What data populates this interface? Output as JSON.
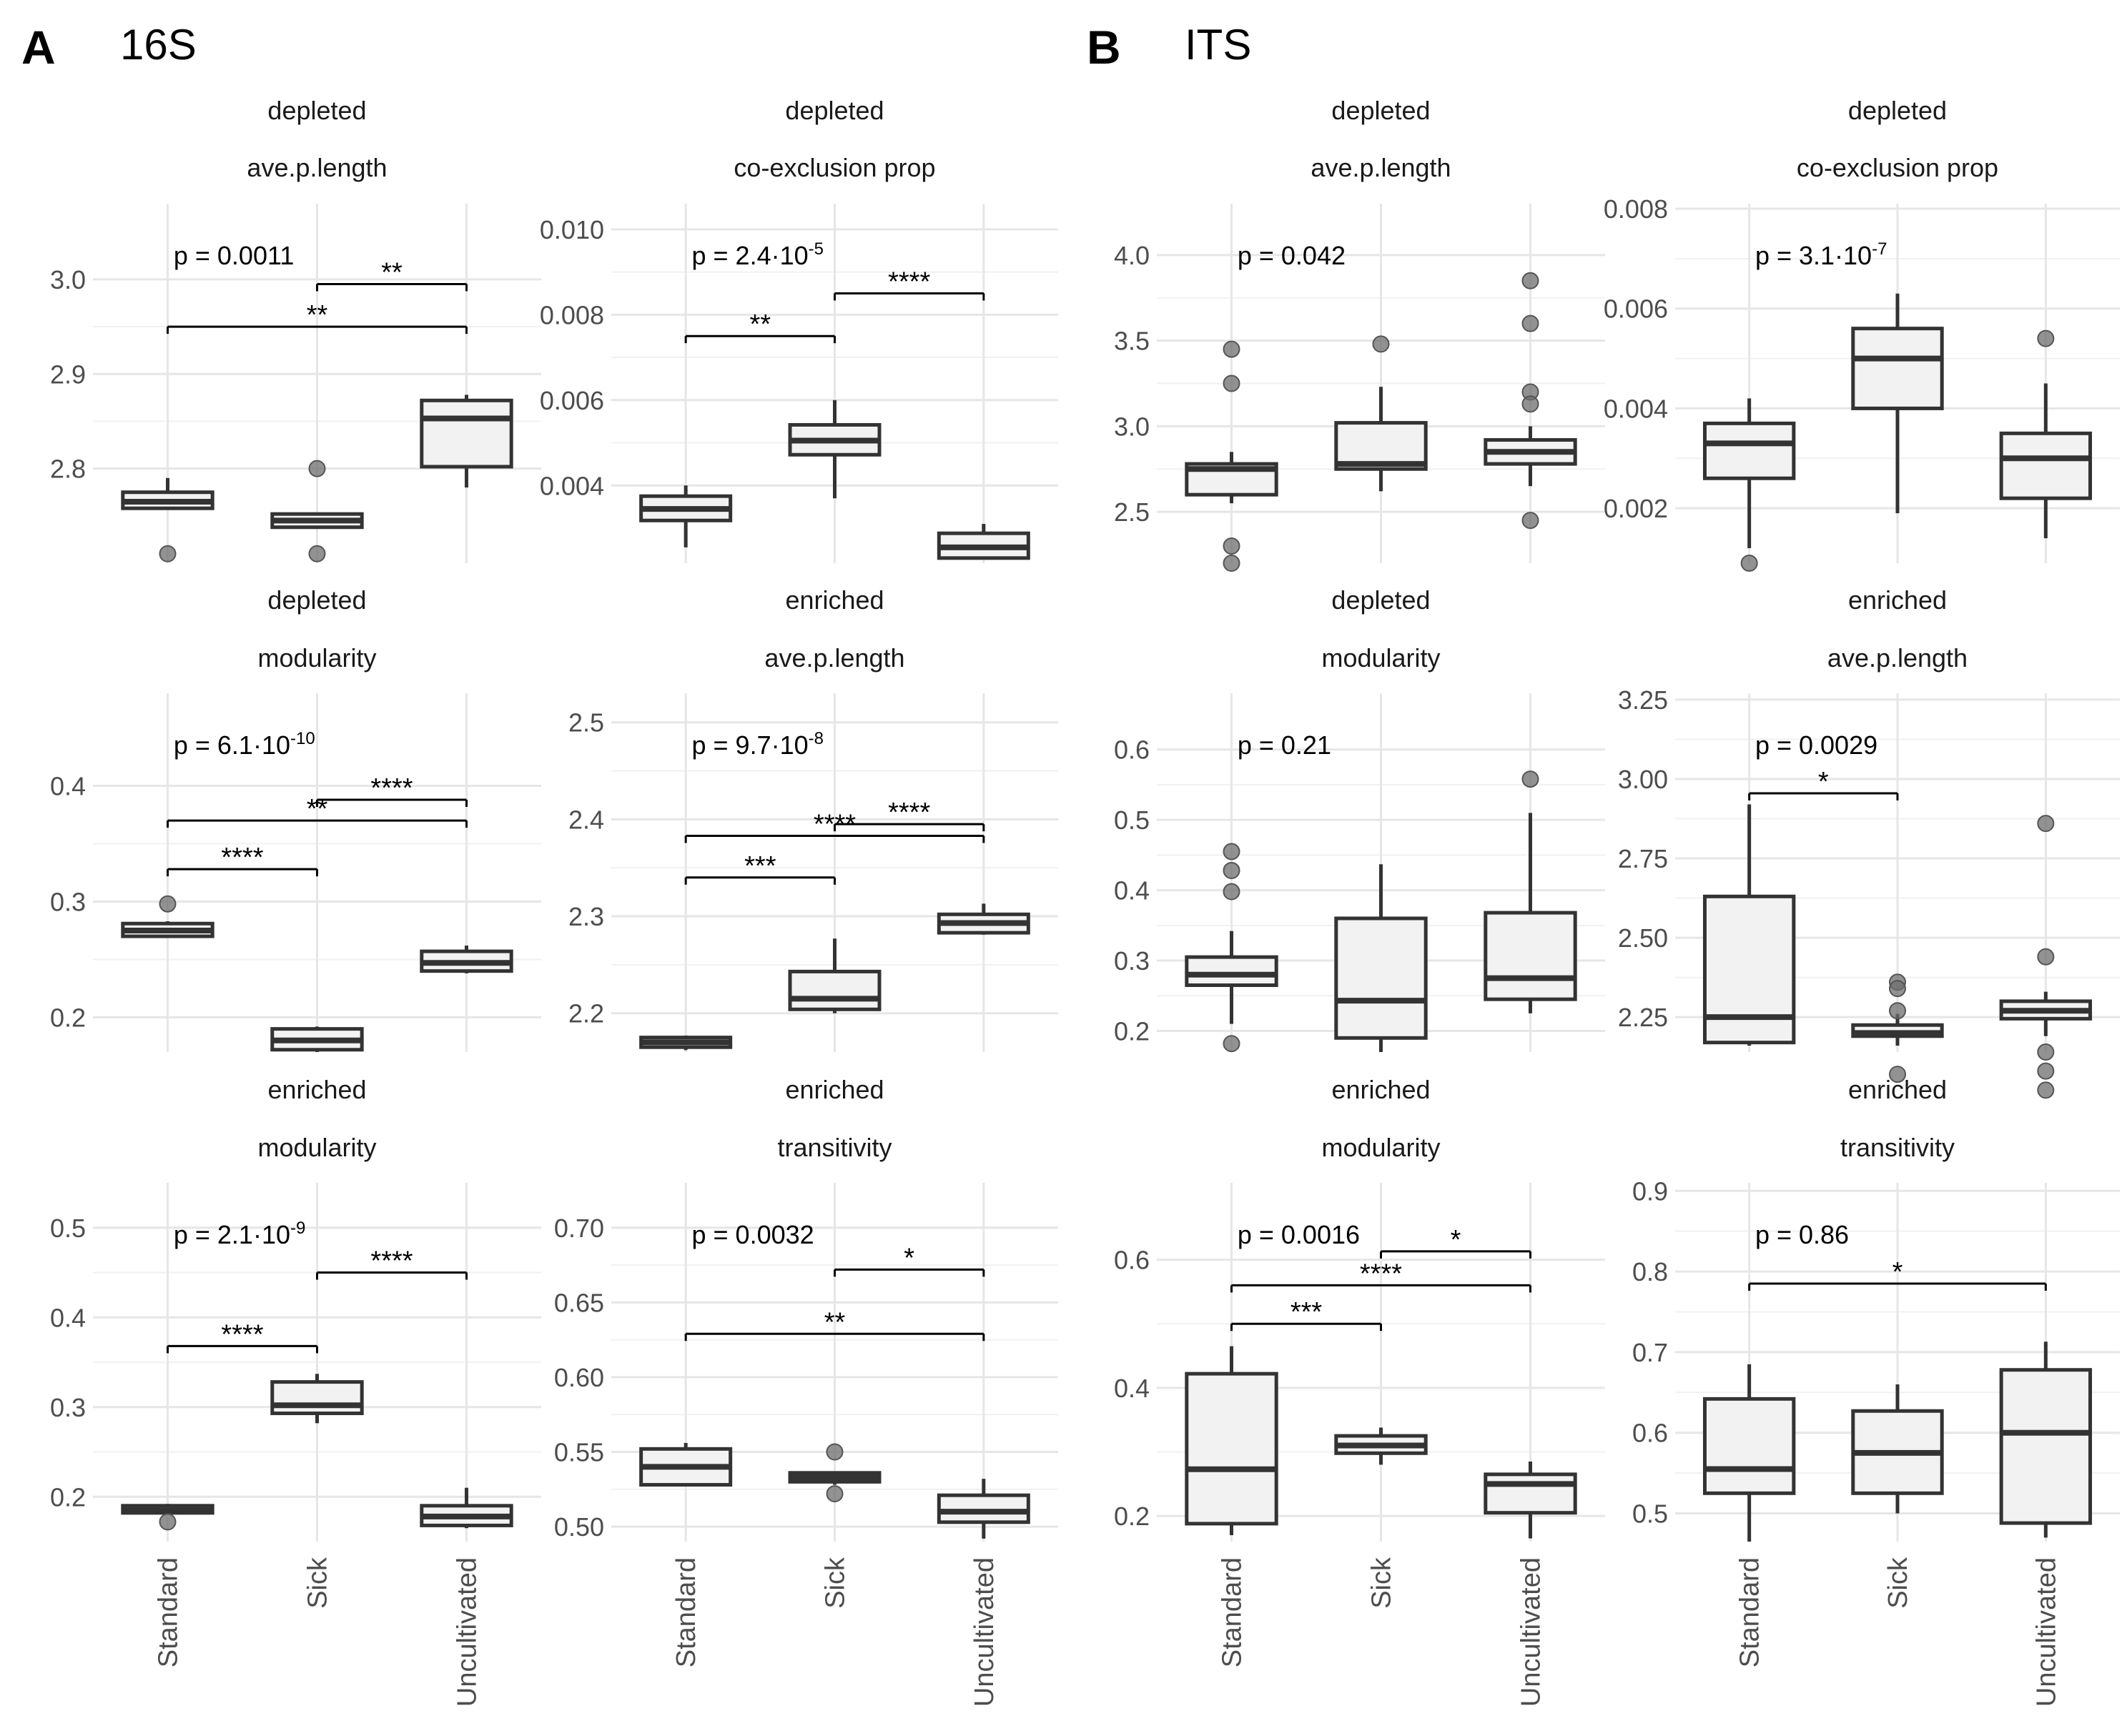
{
  "figure": {
    "panels": [
      {
        "label": "A",
        "title": "16S"
      },
      {
        "label": "B",
        "title": "ITS"
      }
    ],
    "groups": [
      "Standard",
      "Sick",
      "Uncultivated"
    ]
  },
  "chart_data": [
    {
      "type": "boxplot",
      "panel": "A",
      "strip1": "depleted",
      "strip2": "ave.p.length",
      "ylim": [
        2.7,
        3.08
      ],
      "yticks": [
        2.8,
        2.9,
        3.0
      ],
      "yticklabels": [
        "2.8",
        "2.9",
        "3.0"
      ],
      "pvalue": {
        "mantissa": "p = 0.0011",
        "exponent": ""
      },
      "categories": [
        "Standard",
        "Sick",
        "Uncultivated"
      ],
      "boxes": [
        {
          "q1": 2.758,
          "median": 2.765,
          "q3": 2.775,
          "whisker_low": 2.758,
          "whisker_high": 2.79,
          "outliers": [
            2.71
          ]
        },
        {
          "q1": 2.738,
          "median": 2.745,
          "q3": 2.752,
          "whisker_low": 2.738,
          "whisker_high": 2.752,
          "outliers": [
            2.8,
            2.71
          ]
        },
        {
          "q1": 2.802,
          "median": 2.853,
          "q3": 2.872,
          "whisker_low": 2.78,
          "whisker_high": 2.878,
          "outliers": []
        }
      ],
      "brackets": [
        {
          "from": 1,
          "to": 2,
          "y": 2.995,
          "label": "**"
        },
        {
          "from": 0,
          "to": 2,
          "y": 2.95,
          "label": "**"
        }
      ]
    },
    {
      "type": "boxplot",
      "panel": "A",
      "strip1": "depleted",
      "strip2": "co-exclusion prop",
      "ylim": [
        0.00218,
        0.0106
      ],
      "yticks": [
        0.004,
        0.006,
        0.008,
        0.01
      ],
      "yticklabels": [
        "0.004",
        "0.006",
        "0.008",
        "0.010"
      ],
      "pvalue": {
        "mantissa": "p = 2.4·10",
        "exponent": "-5"
      },
      "categories": [
        "Standard",
        "Sick",
        "Uncultivated"
      ],
      "boxes": [
        {
          "q1": 0.00318,
          "median": 0.00345,
          "q3": 0.00375,
          "whisker_low": 0.00255,
          "whisker_high": 0.004,
          "outliers": []
        },
        {
          "q1": 0.00472,
          "median": 0.00505,
          "q3": 0.00542,
          "whisker_low": 0.0037,
          "whisker_high": 0.006,
          "outliers": []
        },
        {
          "q1": 0.0023,
          "median": 0.00255,
          "q3": 0.00288,
          "whisker_low": 0.0023,
          "whisker_high": 0.0031,
          "outliers": []
        }
      ],
      "brackets": [
        {
          "from": 1,
          "to": 2,
          "y": 0.0085,
          "label": "****"
        },
        {
          "from": 0,
          "to": 1,
          "y": 0.0075,
          "label": "**"
        }
      ]
    },
    {
      "type": "boxplot",
      "panel": "B",
      "strip1": "depleted",
      "strip2": "ave.p.length",
      "ylim": [
        2.2,
        4.3
      ],
      "yticks": [
        2.5,
        3.0,
        3.5,
        4.0
      ],
      "yticklabels": [
        "2.5",
        "3.0",
        "3.5",
        "4.0"
      ],
      "pvalue": {
        "mantissa": "p = 0.042",
        "exponent": ""
      },
      "categories": [
        "Standard",
        "Sick",
        "Uncultivated"
      ],
      "boxes": [
        {
          "q1": 2.6,
          "median": 2.75,
          "q3": 2.78,
          "whisker_low": 2.55,
          "whisker_high": 2.85,
          "outliers": [
            3.45,
            3.25,
            2.3,
            2.2
          ]
        },
        {
          "q1": 2.75,
          "median": 2.78,
          "q3": 3.02,
          "whisker_low": 2.62,
          "whisker_high": 3.23,
          "outliers": [
            3.48
          ]
        },
        {
          "q1": 2.78,
          "median": 2.85,
          "q3": 2.92,
          "whisker_low": 2.65,
          "whisker_high": 3.0,
          "outliers": [
            3.85,
            3.6,
            3.2,
            3.13,
            2.45
          ]
        }
      ],
      "brackets": []
    },
    {
      "type": "boxplot",
      "panel": "B",
      "strip1": "depleted",
      "strip2": "co-exclusion prop",
      "ylim": [
        0.0009,
        0.0081
      ],
      "yticks": [
        0.002,
        0.004,
        0.006,
        0.008
      ],
      "yticklabels": [
        "0.002",
        "0.004",
        "0.006",
        "0.008"
      ],
      "pvalue": {
        "mantissa": "p = 3.1·10",
        "exponent": "-7"
      },
      "categories": [
        "Standard",
        "Sick",
        "Uncultivated"
      ],
      "boxes": [
        {
          "q1": 0.0026,
          "median": 0.0033,
          "q3": 0.0037,
          "whisker_low": 0.0012,
          "whisker_high": 0.0042,
          "outliers": [
            0.0009
          ]
        },
        {
          "q1": 0.004,
          "median": 0.005,
          "q3": 0.0056,
          "whisker_low": 0.0019,
          "whisker_high": 0.0063,
          "outliers": []
        },
        {
          "q1": 0.0022,
          "median": 0.003,
          "q3": 0.0035,
          "whisker_low": 0.0014,
          "whisker_high": 0.0045,
          "outliers": [
            0.0054
          ]
        }
      ],
      "brackets": []
    },
    {
      "type": "boxplot",
      "panel": "A",
      "strip1": "depleted",
      "strip2": "modularity",
      "ylim": [
        0.17,
        0.48
      ],
      "yticks": [
        0.2,
        0.3,
        0.4
      ],
      "yticklabels": [
        "0.2",
        "0.3",
        "0.4"
      ],
      "pvalue": {
        "mantissa": "p = 6.1·10",
        "exponent": "-10"
      },
      "categories": [
        "Standard",
        "Sick",
        "Uncultivated"
      ],
      "boxes": [
        {
          "q1": 0.27,
          "median": 0.275,
          "q3": 0.281,
          "whisker_low": 0.27,
          "whisker_high": 0.283,
          "outliers": [
            0.298
          ]
        },
        {
          "q1": 0.172,
          "median": 0.18,
          "q3": 0.19,
          "whisker_low": 0.17,
          "whisker_high": 0.192,
          "outliers": []
        },
        {
          "q1": 0.24,
          "median": 0.247,
          "q3": 0.257,
          "whisker_low": 0.238,
          "whisker_high": 0.262,
          "outliers": []
        }
      ],
      "brackets": [
        {
          "from": 1,
          "to": 2,
          "y": 0.388,
          "label": "****"
        },
        {
          "from": 0,
          "to": 2,
          "y": 0.37,
          "label": "**"
        },
        {
          "from": 0,
          "to": 1,
          "y": 0.328,
          "label": "****"
        }
      ]
    },
    {
      "type": "boxplot",
      "panel": "A",
      "strip1": "enriched",
      "strip2": "ave.p.length",
      "ylim": [
        2.16,
        2.53
      ],
      "yticks": [
        2.2,
        2.3,
        2.4,
        2.5
      ],
      "yticklabels": [
        "2.2",
        "2.3",
        "2.4",
        "2.5"
      ],
      "pvalue": {
        "mantissa": "p = 9.7·10",
        "exponent": "-8"
      },
      "categories": [
        "Standard",
        "Sick",
        "Uncultivated"
      ],
      "boxes": [
        {
          "q1": 2.165,
          "median": 2.17,
          "q3": 2.175,
          "whisker_low": 2.162,
          "whisker_high": 2.177,
          "outliers": []
        },
        {
          "q1": 2.204,
          "median": 2.215,
          "q3": 2.243,
          "whisker_low": 2.2,
          "whisker_high": 2.277,
          "outliers": []
        },
        {
          "q1": 2.283,
          "median": 2.293,
          "q3": 2.302,
          "whisker_low": 2.281,
          "whisker_high": 2.313,
          "outliers": []
        }
      ],
      "brackets": [
        {
          "from": 1,
          "to": 2,
          "y": 2.395,
          "label": "****"
        },
        {
          "from": 0,
          "to": 2,
          "y": 2.383,
          "label": "****"
        },
        {
          "from": 0,
          "to": 1,
          "y": 2.34,
          "label": "***"
        }
      ]
    },
    {
      "type": "boxplot",
      "panel": "B",
      "strip1": "depleted",
      "strip2": "modularity",
      "ylim": [
        0.17,
        0.68
      ],
      "yticks": [
        0.2,
        0.3,
        0.4,
        0.5,
        0.6
      ],
      "yticklabels": [
        "0.2",
        "0.3",
        "0.4",
        "0.5",
        "0.6"
      ],
      "pvalue": {
        "mantissa": "p = 0.21",
        "exponent": ""
      },
      "categories": [
        "Standard",
        "Sick",
        "Uncultivated"
      ],
      "boxes": [
        {
          "q1": 0.265,
          "median": 0.28,
          "q3": 0.305,
          "whisker_low": 0.21,
          "whisker_high": 0.342,
          "outliers": [
            0.455,
            0.428,
            0.398,
            0.182
          ]
        },
        {
          "q1": 0.19,
          "median": 0.243,
          "q3": 0.36,
          "whisker_low": 0.17,
          "whisker_high": 0.437,
          "outliers": []
        },
        {
          "q1": 0.245,
          "median": 0.275,
          "q3": 0.368,
          "whisker_low": 0.225,
          "whisker_high": 0.51,
          "outliers": [
            0.558
          ]
        }
      ],
      "brackets": []
    },
    {
      "type": "boxplot",
      "panel": "B",
      "strip1": "enriched",
      "strip2": "ave.p.length",
      "ylim": [
        2.14,
        3.27
      ],
      "yticks": [
        2.25,
        2.5,
        2.75,
        3.0,
        3.25
      ],
      "yticklabels": [
        "2.25",
        "2.50",
        "2.75",
        "3.00",
        "3.25"
      ],
      "pvalue": {
        "mantissa": "p = 0.0029",
        "exponent": ""
      },
      "categories": [
        "Standard",
        "Sick",
        "Uncultivated"
      ],
      "boxes": [
        {
          "q1": 2.17,
          "median": 2.25,
          "q3": 2.63,
          "whisker_low": 2.16,
          "whisker_high": 2.92,
          "outliers": []
        },
        {
          "q1": 2.19,
          "median": 2.2,
          "q3": 2.225,
          "whisker_low": 2.16,
          "whisker_high": 2.26,
          "outliers": [
            2.36,
            2.34,
            2.27,
            2.07
          ]
        },
        {
          "q1": 2.245,
          "median": 2.27,
          "q3": 2.3,
          "whisker_low": 2.19,
          "whisker_high": 2.33,
          "outliers": [
            2.86,
            2.44,
            2.14,
            2.08,
            2.02
          ]
        }
      ],
      "brackets": [
        {
          "from": 0,
          "to": 1,
          "y": 2.955,
          "label": "*"
        }
      ]
    },
    {
      "type": "boxplot",
      "panel": "A",
      "strip1": "enriched",
      "strip2": "modularity",
      "ylim": [
        0.15,
        0.55
      ],
      "yticks": [
        0.2,
        0.3,
        0.4,
        0.5
      ],
      "yticklabels": [
        "0.2",
        "0.3",
        "0.4",
        "0.5"
      ],
      "pvalue": {
        "mantissa": "p = 2.1·10",
        "exponent": "-9"
      },
      "categories": [
        "Standard",
        "Sick",
        "Uncultivated"
      ],
      "boxes": [
        {
          "q1": 0.182,
          "median": 0.185,
          "q3": 0.19,
          "whisker_low": 0.18,
          "whisker_high": 0.192,
          "outliers": [
            0.172
          ]
        },
        {
          "q1": 0.293,
          "median": 0.302,
          "q3": 0.328,
          "whisker_low": 0.282,
          "whisker_high": 0.337,
          "outliers": []
        },
        {
          "q1": 0.168,
          "median": 0.178,
          "q3": 0.19,
          "whisker_low": 0.165,
          "whisker_high": 0.21,
          "outliers": []
        }
      ],
      "brackets": [
        {
          "from": 1,
          "to": 2,
          "y": 0.45,
          "label": "****"
        },
        {
          "from": 0,
          "to": 1,
          "y": 0.368,
          "label": "****"
        }
      ]
    },
    {
      "type": "boxplot",
      "panel": "A",
      "strip1": "enriched",
      "strip2": "transitivity",
      "ylim": [
        0.49,
        0.73
      ],
      "yticks": [
        0.5,
        0.55,
        0.6,
        0.65,
        0.7
      ],
      "yticklabels": [
        "0.50",
        "0.55",
        "0.60",
        "0.65",
        "0.70"
      ],
      "pvalue": {
        "mantissa": "p = 0.0032",
        "exponent": ""
      },
      "categories": [
        "Standard",
        "Sick",
        "Uncultivated"
      ],
      "boxes": [
        {
          "q1": 0.528,
          "median": 0.54,
          "q3": 0.552,
          "whisker_low": 0.527,
          "whisker_high": 0.556,
          "outliers": []
        },
        {
          "q1": 0.53,
          "median": 0.533,
          "q3": 0.536,
          "whisker_low": 0.528,
          "whisker_high": 0.537,
          "outliers": [
            0.55,
            0.522
          ]
        },
        {
          "q1": 0.503,
          "median": 0.51,
          "q3": 0.521,
          "whisker_low": 0.492,
          "whisker_high": 0.532,
          "outliers": []
        }
      ],
      "brackets": [
        {
          "from": 1,
          "to": 2,
          "y": 0.672,
          "label": "*"
        },
        {
          "from": 0,
          "to": 2,
          "y": 0.629,
          "label": "**"
        }
      ]
    },
    {
      "type": "boxplot",
      "panel": "B",
      "strip1": "enriched",
      "strip2": "modularity",
      "ylim": [
        0.16,
        0.72
      ],
      "yticks": [
        0.2,
        0.4,
        0.6
      ],
      "yticklabels": [
        "0.2",
        "0.4",
        "0.6"
      ],
      "pvalue": {
        "mantissa": "p = 0.0016",
        "exponent": ""
      },
      "categories": [
        "Standard",
        "Sick",
        "Uncultivated"
      ],
      "boxes": [
        {
          "q1": 0.188,
          "median": 0.273,
          "q3": 0.422,
          "whisker_low": 0.17,
          "whisker_high": 0.465,
          "outliers": []
        },
        {
          "q1": 0.298,
          "median": 0.31,
          "q3": 0.325,
          "whisker_low": 0.28,
          "whisker_high": 0.338,
          "outliers": []
        },
        {
          "q1": 0.205,
          "median": 0.25,
          "q3": 0.265,
          "whisker_low": 0.165,
          "whisker_high": 0.285,
          "outliers": []
        }
      ],
      "brackets": [
        {
          "from": 1,
          "to": 2,
          "y": 0.613,
          "label": "*"
        },
        {
          "from": 0,
          "to": 2,
          "y": 0.56,
          "label": "****"
        },
        {
          "from": 0,
          "to": 1,
          "y": 0.5,
          "label": "***"
        }
      ]
    },
    {
      "type": "boxplot",
      "panel": "B",
      "strip1": "enriched",
      "strip2": "transitivity",
      "ylim": [
        0.465,
        0.91
      ],
      "yticks": [
        0.5,
        0.6,
        0.7,
        0.8,
        0.9
      ],
      "yticklabels": [
        "0.5",
        "0.6",
        "0.7",
        "0.8",
        "0.9"
      ],
      "pvalue": {
        "mantissa": "p = 0.86",
        "exponent": ""
      },
      "categories": [
        "Standard",
        "Sick",
        "Uncultivated"
      ],
      "boxes": [
        {
          "q1": 0.525,
          "median": 0.555,
          "q3": 0.642,
          "whisker_low": 0.465,
          "whisker_high": 0.685,
          "outliers": []
        },
        {
          "q1": 0.525,
          "median": 0.575,
          "q3": 0.627,
          "whisker_low": 0.5,
          "whisker_high": 0.66,
          "outliers": []
        },
        {
          "q1": 0.488,
          "median": 0.6,
          "q3": 0.678,
          "whisker_low": 0.47,
          "whisker_high": 0.713,
          "outliers": []
        }
      ],
      "brackets": [
        {
          "from": 0,
          "to": 2,
          "y": 0.785,
          "label": "*"
        }
      ]
    }
  ]
}
